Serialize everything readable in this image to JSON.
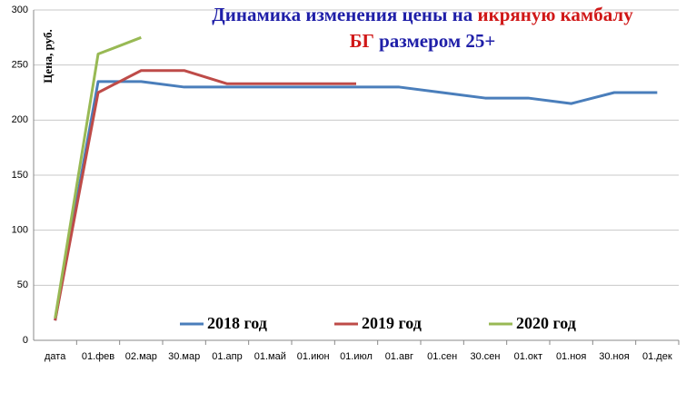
{
  "chart_data": {
    "type": "line",
    "title_lines": [
      [
        {
          "text": "Динамика изменения  цены на ",
          "color": "#1f1fa8"
        },
        {
          "text": "икряную камбалу",
          "color": "#d01818"
        }
      ],
      [
        {
          "text": "БГ",
          "color": "#d01818"
        },
        {
          "text": " размером 25+",
          "color": "#1f1fa8"
        }
      ]
    ],
    "y_label": "Цена, руб.",
    "categories": [
      "дата",
      "01.фев",
      "02.мар",
      "30.мар",
      "01.апр",
      "01.май",
      "01.июн",
      "01.июл",
      "01.авг",
      "01.сен",
      "30.сен",
      "01.окт",
      "01.ноя",
      "30.ноя",
      "01.дек"
    ],
    "series": [
      {
        "name": "2018 год",
        "color": "#4a7ebb",
        "values": [
          18,
          235,
          235,
          230,
          230,
          230,
          230,
          230,
          230,
          225,
          220,
          220,
          215,
          225,
          225
        ]
      },
      {
        "name": "2019 год",
        "color": "#be4b48",
        "values": [
          18,
          225,
          245,
          245,
          233,
          233,
          233,
          233,
          null,
          null,
          null,
          null,
          null,
          null,
          null
        ]
      },
      {
        "name": "2020 год",
        "color": "#98b954",
        "values": [
          20,
          260,
          275,
          null,
          null,
          null,
          null,
          null,
          null,
          null,
          null,
          null,
          null,
          null,
          null
        ]
      }
    ],
    "ylim": [
      0,
      300
    ],
    "yticks": [
      0,
      50,
      100,
      150,
      200,
      250,
      300
    ],
    "grid": true
  }
}
